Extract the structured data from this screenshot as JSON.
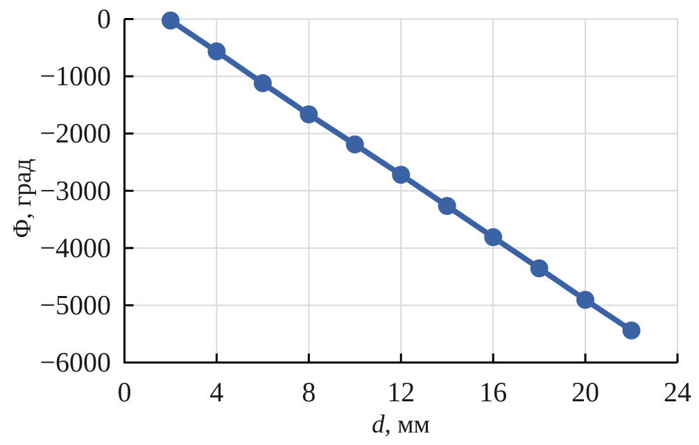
{
  "chart_data": {
    "type": "line",
    "title": "",
    "xlabel_var": "d",
    "xlabel_rest": ", мм",
    "ylabel": "Φ, град",
    "x": [
      2,
      4,
      6,
      8,
      10,
      12,
      14,
      16,
      18,
      20,
      22
    ],
    "y": [
      -25,
      -565,
      -1120,
      -1665,
      -2190,
      -2720,
      -3265,
      -3810,
      -4355,
      -4905,
      -5440
    ],
    "xlim": [
      0,
      24
    ],
    "ylim": [
      -6000,
      0
    ],
    "xticks": [
      0,
      4,
      8,
      12,
      16,
      20,
      24
    ],
    "yticks": [
      0,
      -1000,
      -2000,
      -3000,
      -4000,
      -5000,
      -6000
    ],
    "x_tick_labels": [
      "0",
      "4",
      "8",
      "12",
      "16",
      "20",
      "24"
    ],
    "y_tick_labels": [
      "0",
      "−1000",
      "−2000",
      "−3000",
      "−4000",
      "−5000",
      "−6000"
    ],
    "grid": true,
    "legend": "none",
    "marker": "circle",
    "line_color": "#3B62A4",
    "marker_color": "#3B62A4",
    "gridline_color": "#D9D9D9",
    "axis_color": "#000000",
    "background": "#FFFFFF"
  }
}
